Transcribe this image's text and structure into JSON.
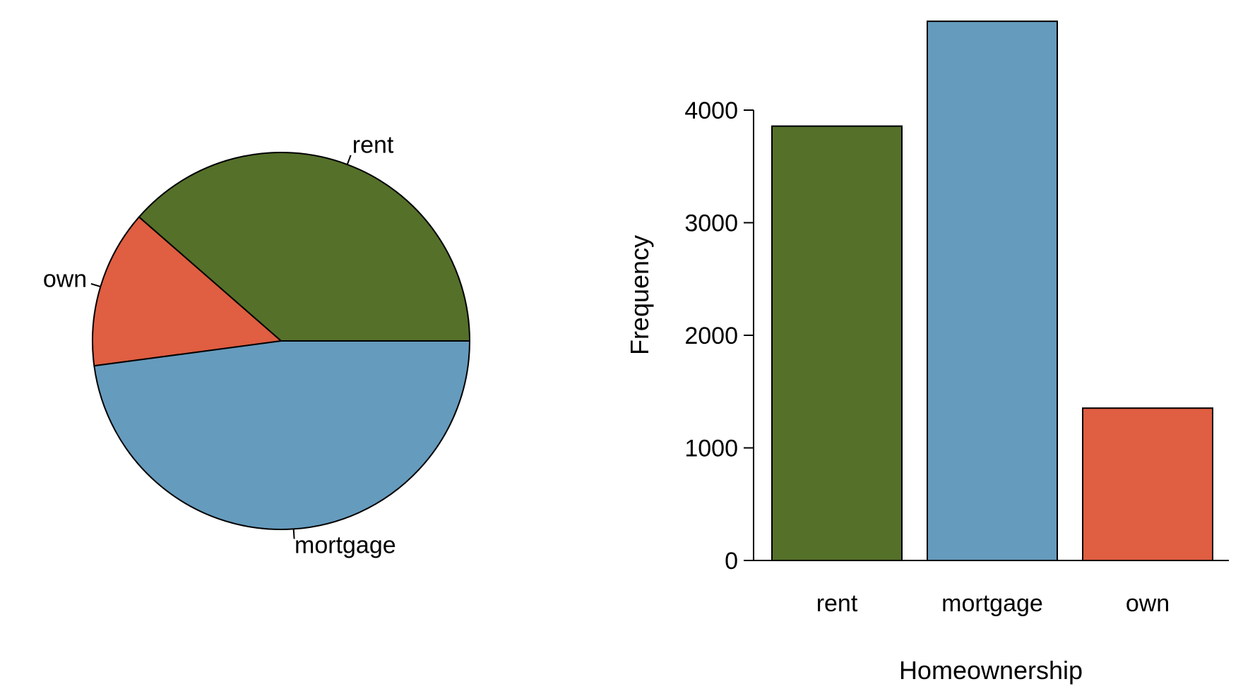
{
  "chart_data": [
    {
      "type": "pie",
      "title": "",
      "slices": [
        {
          "label": "rent",
          "value": 3858,
          "color": "#557029"
        },
        {
          "label": "own",
          "value": 1353,
          "color": "#E05E41"
        },
        {
          "label": "mortgage",
          "value": 4789,
          "color": "#659BBD"
        }
      ]
    },
    {
      "type": "bar",
      "title": "",
      "categories": [
        "rent",
        "mortgage",
        "own"
      ],
      "values": [
        3858,
        4789,
        1353
      ],
      "colors": [
        "#557029",
        "#659BBD",
        "#E05E41"
      ],
      "xlabel": "Homeownership",
      "ylabel": "Frequency",
      "ylim": [
        0,
        4789
      ],
      "yticks": [
        0,
        1000,
        2000,
        3000,
        4000
      ],
      "ytick_labels": [
        "0",
        "1000",
        "2000",
        "3000",
        "4000"
      ],
      "grid": false
    }
  ]
}
